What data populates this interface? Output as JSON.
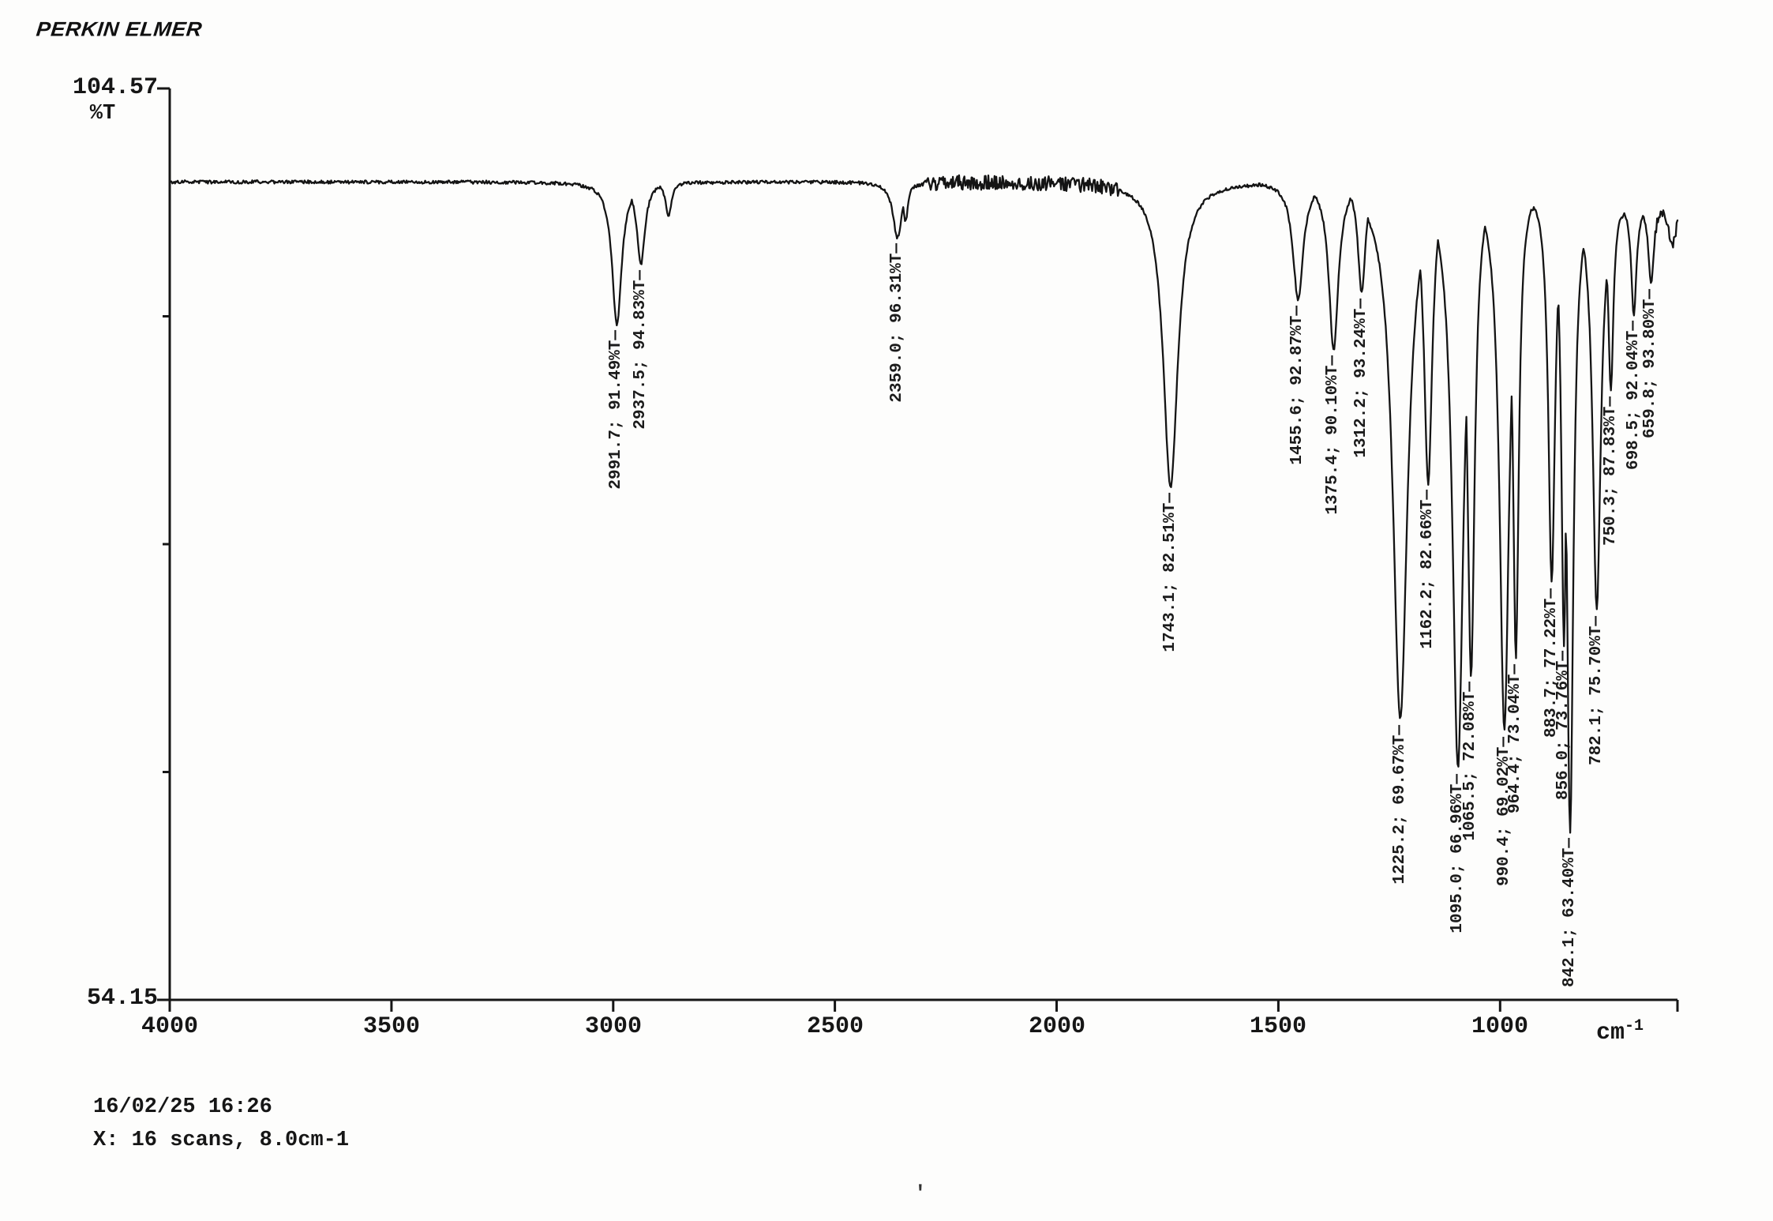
{
  "header": {
    "logo": "PERKIN ELMER"
  },
  "chart_data": {
    "type": "line",
    "title": "",
    "instrument": "PERKIN ELMER",
    "xlabel": "cm-1",
    "ylabel": "%T",
    "grid": false,
    "x_axis": {
      "unit_base": "cm",
      "unit_exponent": "-1",
      "min": 600,
      "max": 4000,
      "direction": "descending",
      "ticks": [
        4000,
        3500,
        3000,
        2500,
        2000,
        1500,
        1000
      ]
    },
    "y_axis": {
      "unit": "%T",
      "top_label": "104.57",
      "bottom_label": "54.15",
      "min": 54.15,
      "max": 104.57
    },
    "baseline_percent_t": 99.4,
    "peaks": [
      {
        "wavenumber": 2991.7,
        "transmittance": 91.49,
        "width": 13
      },
      {
        "wavenumber": 2937.5,
        "transmittance": 94.83,
        "width": 11
      },
      {
        "wavenumber": 2359.0,
        "transmittance": 96.31,
        "width": 12
      },
      {
        "wavenumber": 1743.1,
        "transmittance": 82.51,
        "width": 20
      },
      {
        "wavenumber": 1455.6,
        "transmittance": 92.87,
        "width": 14
      },
      {
        "wavenumber": 1375.4,
        "transmittance": 90.1,
        "width": 13
      },
      {
        "wavenumber": 1312.2,
        "transmittance": 93.24,
        "width": 10
      },
      {
        "wavenumber": 1225.2,
        "transmittance": 69.67,
        "width": 20
      },
      {
        "wavenumber": 1162.2,
        "transmittance": 82.66,
        "width": 11
      },
      {
        "wavenumber": 1095.0,
        "transmittance": 66.96,
        "width": 15
      },
      {
        "wavenumber": 1065.5,
        "transmittance": 72.08,
        "width": 10
      },
      {
        "wavenumber": 990.4,
        "transmittance": 69.02,
        "width": 13
      },
      {
        "wavenumber": 964.4,
        "transmittance": 73.04,
        "width": 8
      },
      {
        "wavenumber": 883.7,
        "transmittance": 77.22,
        "width": 9
      },
      {
        "wavenumber": 856.0,
        "transmittance": 73.76,
        "width": 7
      },
      {
        "wavenumber": 842.1,
        "transmittance": 63.4,
        "width": 9
      },
      {
        "wavenumber": 782.1,
        "transmittance": 75.7,
        "width": 11
      },
      {
        "wavenumber": 750.3,
        "transmittance": 87.83,
        "width": 7
      },
      {
        "wavenumber": 698.5,
        "transmittance": 92.04,
        "width": 7
      },
      {
        "wavenumber": 659.8,
        "transmittance": 93.8,
        "width": 7
      }
    ],
    "unlabeled_features": [
      {
        "wavenumber": 2875.0,
        "transmittance": 97.5,
        "width": 8
      },
      {
        "wavenumber": 2341.0,
        "transmittance": 97.2,
        "width": 7
      },
      {
        "wavenumber": 612.0,
        "transmittance": 95.8,
        "width": 9
      }
    ]
  },
  "footer": {
    "timestamp": "16/02/25 16:26",
    "scan_info": "X: 16 scans, 8.0cm-1",
    "artifact": "'"
  }
}
